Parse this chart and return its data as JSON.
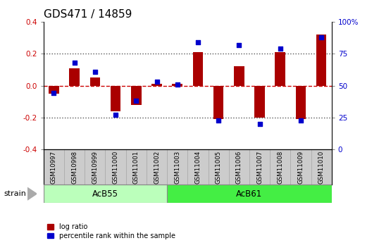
{
  "title": "GDS471 / 14859",
  "samples": [
    "GSM10997",
    "GSM10998",
    "GSM10999",
    "GSM11000",
    "GSM11001",
    "GSM11002",
    "GSM11003",
    "GSM11004",
    "GSM11005",
    "GSM11006",
    "GSM11007",
    "GSM11008",
    "GSM11009",
    "GSM11010"
  ],
  "log_ratio": [
    -0.05,
    0.11,
    0.05,
    -0.16,
    -0.12,
    0.01,
    0.01,
    0.21,
    -0.21,
    0.12,
    -0.2,
    0.21,
    -0.21,
    0.32
  ],
  "percentile": [
    44,
    68,
    61,
    27,
    38,
    53,
    51,
    84,
    23,
    82,
    20,
    79,
    23,
    88
  ],
  "ylim_lr": [
    -0.4,
    0.4
  ],
  "ylim_pct": [
    0,
    100
  ],
  "yticks_lr": [
    -0.4,
    -0.2,
    0.0,
    0.2,
    0.4
  ],
  "yticks_pct": [
    0,
    25,
    50,
    75,
    100
  ],
  "left_tick_color": "#cc0000",
  "right_tick_color": "#0000cc",
  "bar_color": "#aa0000",
  "dot_color": "#0000cc",
  "hline_color": "#cc0000",
  "dotted_color": "#555555",
  "group1_label": "AcB55",
  "group2_label": "AcB61",
  "group1_count": 6,
  "strain_label": "strain",
  "legend_log": "log ratio",
  "legend_pct": "percentile rank within the sample",
  "bg_color": "#ffffff",
  "label_bg": "#cccccc",
  "group1_bg": "#bbffbb",
  "group2_bg": "#44ee44",
  "tick_fontsize": 7.5,
  "bar_width": 0.5,
  "dot_size": 22,
  "title_fontsize": 11
}
